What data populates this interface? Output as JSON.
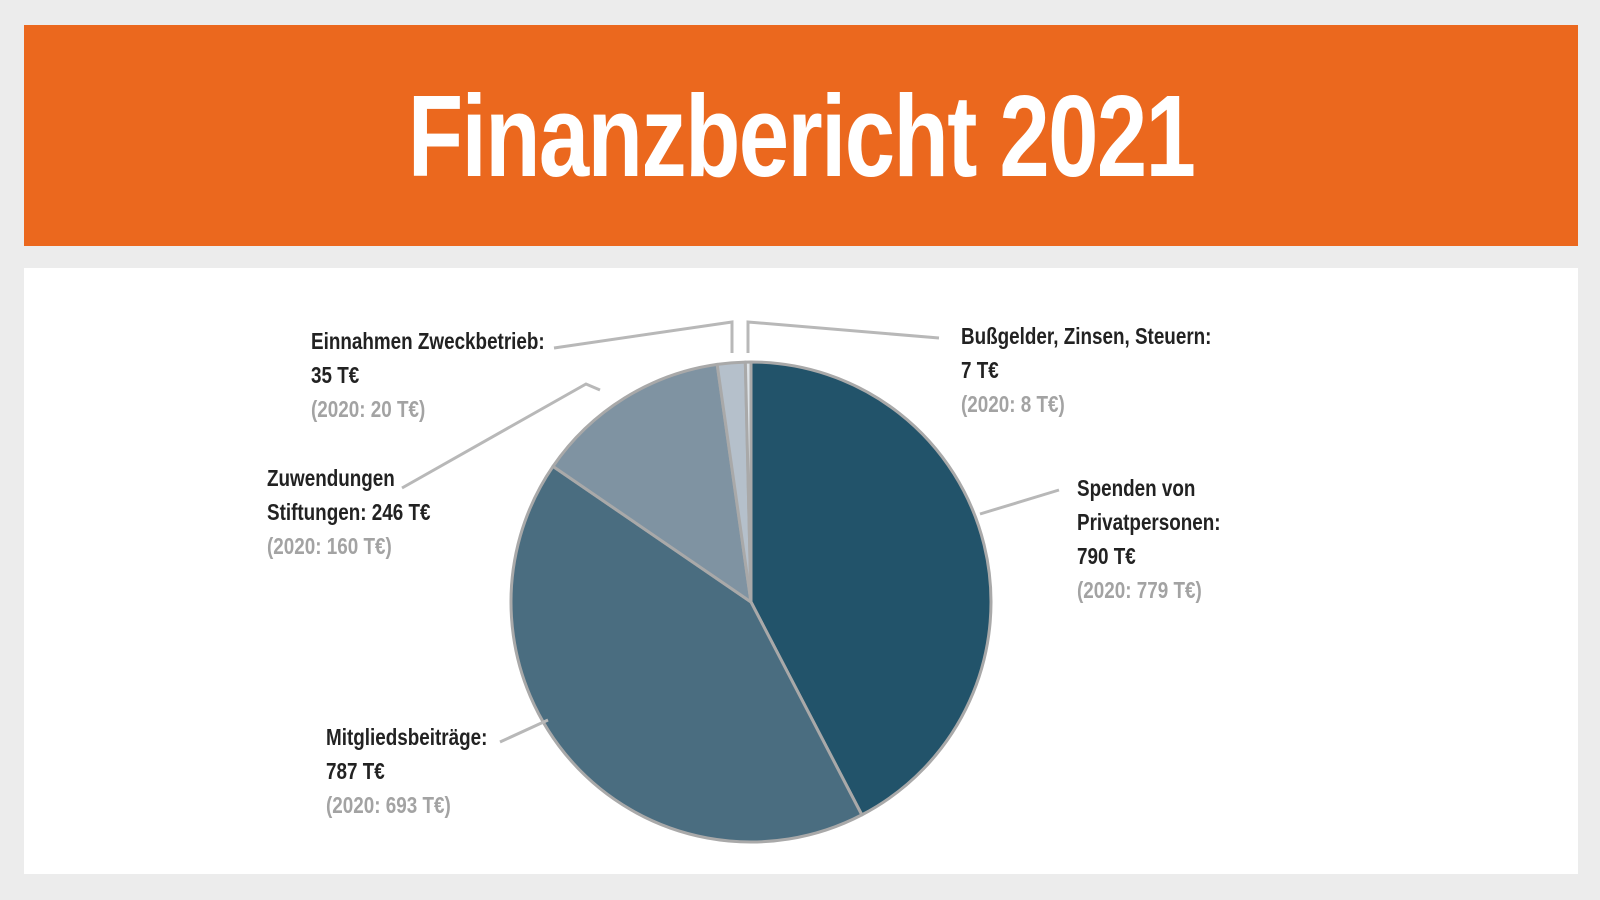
{
  "title": "Finanzbericht 2021",
  "chart_data": {
    "type": "pie",
    "unit": "T€",
    "colors": {
      "banner": "#eb681e",
      "border": "#a9a9a9",
      "leader": "#b8b8b8",
      "label_text": "#222222",
      "previous_year_text": "#a3a3a3"
    },
    "slices": [
      {
        "key": "spenden",
        "value": 790,
        "color": "#22536a",
        "label_lines": [
          "Spenden von",
          "Privatpersonen:",
          "790 T€"
        ],
        "previous_label": "(2020: 779 T€)",
        "previous_value": 779
      },
      {
        "key": "mitglieder",
        "value": 787,
        "color": "#4a6d80",
        "label_lines": [
          "Mitgliedsbeiträge:",
          "787 T€"
        ],
        "previous_label": "(2020: 693 T€)",
        "previous_value": 693
      },
      {
        "key": "stiftungen",
        "value": 246,
        "color": "#7f93a2",
        "label_lines": [
          "Zuwendungen",
          "Stiftungen: 246 T€"
        ],
        "previous_label": "(2020: 160 T€)",
        "previous_value": 160
      },
      {
        "key": "zweckbetrieb",
        "value": 35,
        "color": "#b5c0cb",
        "label_lines": [
          "Einnahmen Zweckbetrieb:",
          "35 T€"
        ],
        "previous_label": "(2020: 20 T€)",
        "previous_value": 20
      },
      {
        "key": "bussgelder",
        "value": 7,
        "color": "#dde3e8",
        "label_lines": [
          "Bußgelder, Zinsen, Steuern:",
          "7 T€"
        ],
        "previous_label": "(2020: 8 T€)",
        "previous_value": 8
      }
    ]
  }
}
